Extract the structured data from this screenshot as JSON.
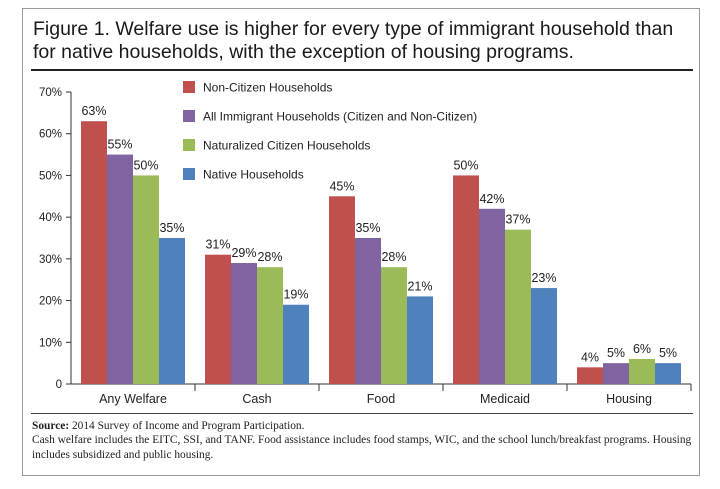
{
  "title": "Figure 1. Welfare use is higher for every type of immigrant household than for native households, with the exception of housing programs.",
  "source": {
    "label": "Source:",
    "text": " 2014 Survey of Income and Program Participation.",
    "note": "Cash welfare includes the EITC, SSI, and TANF. Food assistance includes food stamps, WIC, and the school lunch/breakfast programs. Housing includes subsidized and public housing."
  },
  "chart_data": {
    "type": "bar",
    "title": "",
    "xlabel": "",
    "ylabel": "",
    "ylim": [
      0,
      70
    ],
    "yticks": [
      0,
      10,
      20,
      30,
      40,
      50,
      60,
      70
    ],
    "ytick_labels": [
      "0",
      "10%",
      "20%",
      "30%",
      "40%",
      "50%",
      "60%",
      "70%"
    ],
    "grid": false,
    "legend_position": "top-center",
    "categories": [
      "Any Welfare",
      "Cash",
      "Food",
      "Medicaid",
      "Housing"
    ],
    "series": [
      {
        "name": "Non-Citizen Households",
        "color": "#c0504d",
        "values": [
          63,
          31,
          45,
          50,
          4
        ],
        "labels": [
          "63%",
          "31%",
          "45%",
          "50%",
          "4%"
        ]
      },
      {
        "name": "All Immigrant Households (Citizen and Non-Citizen)",
        "color": "#8064a2",
        "values": [
          55,
          29,
          35,
          42,
          5
        ],
        "labels": [
          "55%",
          "29%",
          "35%",
          "42%",
          "5%"
        ]
      },
      {
        "name": "Naturalized Citizen Households",
        "color": "#9bbb59",
        "values": [
          50,
          28,
          28,
          37,
          6
        ],
        "labels": [
          "50%",
          "28%",
          "28%",
          "37%",
          "6%"
        ]
      },
      {
        "name": "Native Households",
        "color": "#4f81bd",
        "values": [
          35,
          19,
          21,
          23,
          5
        ],
        "labels": [
          "35%",
          "19%",
          "21%",
          "23%",
          "5%"
        ]
      }
    ]
  }
}
